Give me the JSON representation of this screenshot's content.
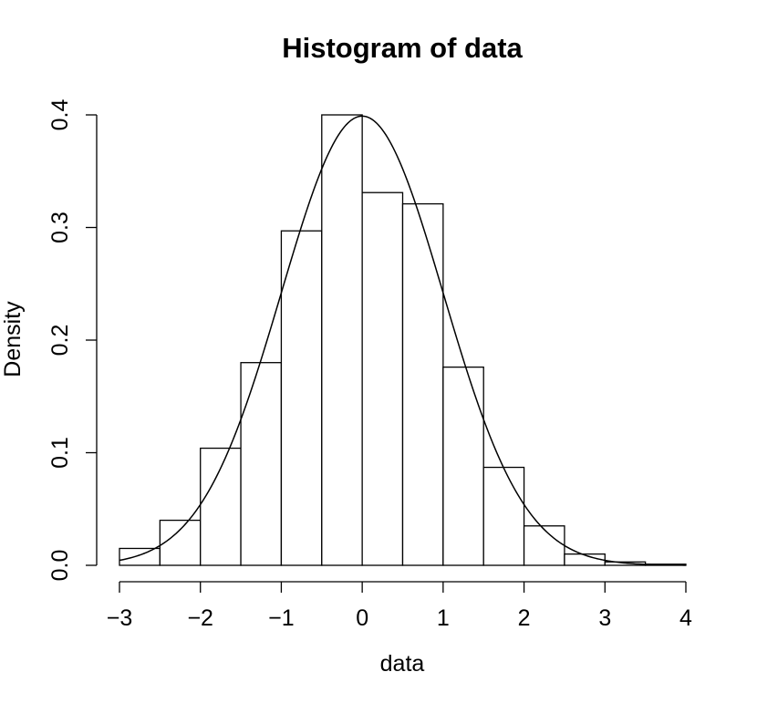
{
  "chart_data": {
    "type": "bar",
    "title": "Histogram of data",
    "xlabel": "data",
    "ylabel": "Density",
    "xlim": [
      -3,
      4
    ],
    "ylim": [
      0,
      0.4
    ],
    "x_ticks": [
      -3,
      -2,
      -1,
      0,
      1,
      2,
      3,
      4
    ],
    "x_tick_labels": [
      "−3",
      "−2",
      "−1",
      "0",
      "1",
      "2",
      "3",
      "4"
    ],
    "y_ticks": [
      0.0,
      0.1,
      0.2,
      0.3,
      0.4
    ],
    "y_tick_labels": [
      "0.0",
      "0.1",
      "0.2",
      "0.3",
      "0.4"
    ],
    "bins": [
      {
        "x0": -3.0,
        "x1": -2.5,
        "density": 0.015
      },
      {
        "x0": -2.5,
        "x1": -2.0,
        "density": 0.04
      },
      {
        "x0": -2.0,
        "x1": -1.5,
        "density": 0.104
      },
      {
        "x0": -1.5,
        "x1": -1.0,
        "density": 0.18
      },
      {
        "x0": -1.0,
        "x1": -0.5,
        "density": 0.297
      },
      {
        "x0": -0.5,
        "x1": 0.0,
        "density": 0.4
      },
      {
        "x0": 0.0,
        "x1": 0.5,
        "density": 0.331
      },
      {
        "x0": 0.5,
        "x1": 1.0,
        "density": 0.321
      },
      {
        "x0": 1.0,
        "x1": 1.5,
        "density": 0.176
      },
      {
        "x0": 1.5,
        "x1": 2.0,
        "density": 0.087
      },
      {
        "x0": 2.0,
        "x1": 2.5,
        "density": 0.035
      },
      {
        "x0": 2.5,
        "x1": 3.0,
        "density": 0.01
      },
      {
        "x0": 3.0,
        "x1": 3.5,
        "density": 0.003
      },
      {
        "x0": 3.5,
        "x1": 4.0,
        "density": 0.001
      }
    ],
    "overlay_curve": {
      "type": "normal_density",
      "mean": 0,
      "sd": 1,
      "x_range": [
        -3,
        4
      ]
    },
    "grid": false,
    "legend": "none",
    "colors": {
      "bar_fill": "#ffffff",
      "bar_stroke": "#000000",
      "curve": "#000000",
      "axis": "#000000"
    }
  }
}
